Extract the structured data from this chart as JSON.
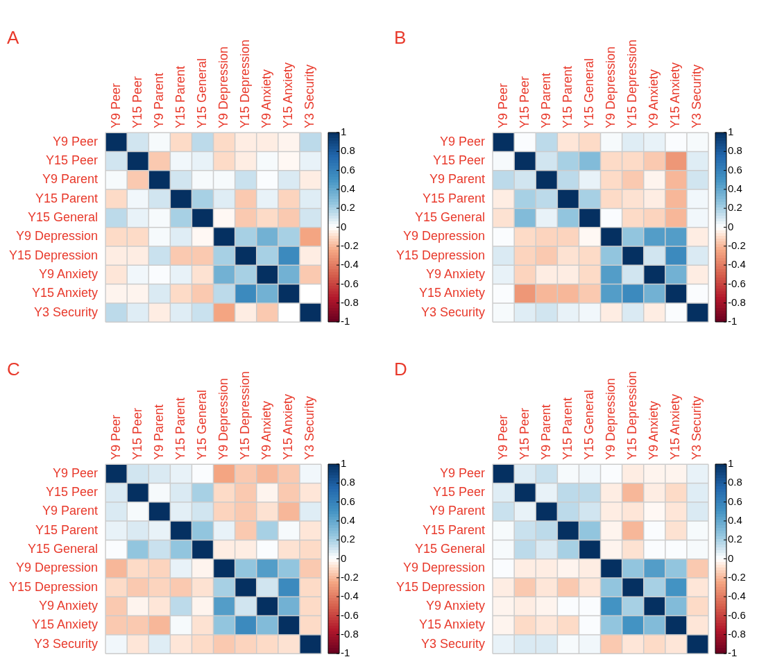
{
  "chart_data": [
    {
      "type": "heatmap",
      "grid": true,
      "title": "A",
      "categories": [
        "Y9 Peer",
        "Y15 Peer",
        "Y9 Parent",
        "Y15 Parent",
        "Y15 General",
        "Y9 Depression",
        "Y15 Depression",
        "Y9 Anxiety",
        "Y15 Anxiety",
        "Y3 Security"
      ],
      "y_categories": [
        "Y9 Peer",
        "Y15 Peer",
        "Y9 Parent",
        "Y15 Parent",
        "Y15 General",
        "Y9 Depression",
        "Y15 Depression",
        "Y9 Anxiety",
        "Y15 Anxiety",
        "Y3 Security"
      ],
      "clim": [
        -1,
        1
      ],
      "cticks": [
        1,
        0.8,
        0.6,
        0.4,
        0.2,
        0,
        -0.2,
        -0.4,
        -0.6,
        -0.8,
        -1
      ],
      "cells": [
        [
          1,
          0.1,
          0.02,
          -0.1,
          0.15,
          -0.1,
          -0.05,
          -0.05,
          -0.03,
          0.15
        ],
        [
          0.1,
          1,
          -0.15,
          0.03,
          0.05,
          -0.1,
          -0.05,
          0.02,
          -0.02,
          0.05
        ],
        [
          0.02,
          -0.15,
          1,
          0.1,
          0.02,
          0.02,
          0.12,
          0.01,
          0.08,
          -0.05
        ],
        [
          -0.1,
          0.03,
          0.1,
          1,
          0.2,
          0.07,
          -0.15,
          0.05,
          -0.12,
          0.07
        ],
        [
          0.15,
          0.05,
          0.02,
          0.2,
          1,
          -0.02,
          -0.15,
          -0.1,
          -0.15,
          0.1
        ],
        [
          -0.1,
          -0.1,
          0.02,
          0.07,
          -0.02,
          1,
          0.2,
          0.35,
          0.2,
          -0.25
        ],
        [
          -0.05,
          -0.05,
          0.12,
          -0.15,
          -0.15,
          0.2,
          1,
          0.2,
          0.55,
          -0.05
        ],
        [
          -0.07,
          0.03,
          0.01,
          0.05,
          -0.08,
          0.35,
          0.2,
          1,
          0.35,
          -0.15
        ],
        [
          -0.03,
          -0.03,
          0.08,
          -0.1,
          -0.15,
          0.15,
          0.55,
          0.35,
          1,
          0
        ],
        [
          0.15,
          0.07,
          -0.05,
          0.07,
          0.12,
          -0.25,
          -0.05,
          -0.15,
          0,
          1
        ]
      ]
    },
    {
      "type": "heatmap",
      "grid": true,
      "title": "B",
      "categories": [
        "Y9 Peer",
        "Y15 Peer",
        "Y9 Parent",
        "Y15 Parent",
        "Y15 General",
        "Y9 Depression",
        "Y15 Depression",
        "Y9 Anxiety",
        "Y15 Anxiety",
        "Y3 Security"
      ],
      "y_categories": [
        "Y9 Peer",
        "Y15 Peer",
        "Y9 Parent",
        "Y15 Parent",
        "Y15 General",
        "Y9 Depression",
        "Y15 Depression",
        "Y9 Anxiety",
        "Y15 Anxiety",
        "Y3 Security"
      ],
      "clim": [
        -1,
        1
      ],
      "cticks": [
        1,
        0.8,
        0.6,
        0.4,
        0.2,
        0,
        -0.2,
        -0.4,
        -0.6,
        -0.8,
        -1
      ],
      "cells": [
        [
          1,
          0.01,
          0.15,
          -0.07,
          -0.1,
          0.02,
          0.07,
          0.05,
          0.01,
          0.02
        ],
        [
          0.02,
          1,
          0.1,
          0.2,
          0.3,
          -0.1,
          -0.1,
          -0.15,
          -0.3,
          0.07
        ],
        [
          0.15,
          0.1,
          1,
          0.15,
          0.05,
          -0.1,
          -0.15,
          -0.03,
          -0.2,
          0.1
        ],
        [
          -0.05,
          0.2,
          0.15,
          1,
          0.2,
          -0.1,
          -0.08,
          -0.05,
          -0.2,
          0.03
        ],
        [
          -0.08,
          0.3,
          0.05,
          0.25,
          1,
          0.01,
          -0.1,
          -0.12,
          -0.2,
          0.03
        ],
        [
          0.01,
          -0.1,
          -0.12,
          -0.12,
          -0.02,
          1,
          0.25,
          0.45,
          0.45,
          -0.05
        ],
        [
          0.08,
          -0.12,
          -0.15,
          -0.08,
          -0.1,
          0.25,
          1,
          0.1,
          0.55,
          0.08
        ],
        [
          0.05,
          -0.12,
          -0.05,
          -0.05,
          -0.1,
          0.45,
          0.1,
          1,
          0.35,
          -0.05
        ],
        [
          0.01,
          -0.3,
          -0.2,
          -0.2,
          -0.15,
          0.45,
          0.55,
          0.35,
          1,
          0.01
        ],
        [
          0.02,
          0.07,
          0.1,
          0.05,
          0.03,
          -0.05,
          0.08,
          -0.05,
          0.01,
          1
        ]
      ]
    },
    {
      "type": "heatmap",
      "grid": true,
      "title": "C",
      "categories": [
        "Y9 Peer",
        "Y15 Peer",
        "Y9 Parent",
        "Y15 Parent",
        "Y15 General",
        "Y9 Depression",
        "Y15 Depression",
        "Y9 Anxiety",
        "Y15 Anxiety",
        "Y3 Security"
      ],
      "y_categories": [
        "Y9 Peer",
        "Y15 Peer",
        "Y9 Parent",
        "Y15 Parent",
        "Y15 General",
        "Y9 Depression",
        "Y15 Depression",
        "Y9 Anxiety",
        "Y15 Anxiety",
        "Y3 Security"
      ],
      "clim": [
        -1,
        1
      ],
      "cticks": [
        1,
        0.8,
        0.6,
        0.4,
        0.2,
        0,
        -0.2,
        -0.4,
        -0.6,
        -0.8,
        -1
      ],
      "cells": [
        [
          1,
          0.1,
          0.08,
          0.05,
          0.01,
          -0.25,
          -0.15,
          -0.2,
          -0.15,
          0.03
        ],
        [
          0.08,
          1,
          0.02,
          0.08,
          0.2,
          -0.1,
          -0.15,
          -0.03,
          -0.15,
          -0.07
        ],
        [
          0.08,
          0.02,
          1,
          0.06,
          0.1,
          -0.12,
          -0.15,
          -0.08,
          -0.2,
          0.07
        ],
        [
          0.05,
          0.08,
          0.05,
          1,
          0.25,
          0.05,
          -0.15,
          0.2,
          0.02,
          -0.07
        ],
        [
          0.01,
          0.25,
          0.12,
          0.25,
          1,
          -0.05,
          -0.05,
          0.01,
          -0.08,
          -0.1
        ],
        [
          -0.2,
          -0.1,
          -0.12,
          0.05,
          -0.03,
          1,
          0.25,
          0.45,
          0.25,
          -0.15
        ],
        [
          -0.1,
          -0.15,
          -0.12,
          -0.15,
          -0.08,
          0.2,
          1,
          0.1,
          0.55,
          -0.1
        ],
        [
          -0.15,
          -0.03,
          -0.07,
          0.15,
          -0.03,
          0.45,
          0.1,
          1,
          0.35,
          -0.1
        ],
        [
          -0.15,
          -0.15,
          -0.2,
          0.02,
          -0.08,
          0.25,
          0.55,
          0.3,
          1,
          -0.1
        ],
        [
          0.03,
          -0.07,
          0.07,
          -0.07,
          -0.1,
          -0.15,
          -0.12,
          -0.1,
          -0.08,
          1
        ]
      ]
    },
    {
      "type": "heatmap",
      "grid": true,
      "title": "D",
      "categories": [
        "Y9 Peer",
        "Y15 Peer",
        "Y9 Parent",
        "Y15 Parent",
        "Y15 General",
        "Y9 Depression",
        "Y15 Depression",
        "Y9 Anxiety",
        "Y15 Anxiety",
        "Y3 Security"
      ],
      "y_categories": [
        "Y9 Peer",
        "Y15 Peer",
        "Y9 Parent",
        "Y15 Parent",
        "Y15 General",
        "Y9 Depression",
        "Y15 Depression",
        "Y9 Anxiety",
        "Y15 Anxiety",
        "Y3 Security"
      ],
      "clim": [
        -1,
        1
      ],
      "cticks": [
        1,
        0.8,
        0.6,
        0.4,
        0.2,
        0,
        -0.2,
        -0.4,
        -0.6,
        -0.8,
        -1
      ],
      "cells": [
        [
          1,
          0.07,
          0.12,
          0.02,
          0.03,
          0.01,
          -0.05,
          -0.03,
          -0.03,
          0.05
        ],
        [
          0.07,
          1,
          0.05,
          0.15,
          0.15,
          -0.05,
          -0.2,
          -0.05,
          -0.1,
          0.07
        ],
        [
          0.12,
          0.05,
          1,
          0.15,
          0.1,
          -0.05,
          -0.07,
          -0.02,
          -0.07,
          0.08
        ],
        [
          0.02,
          0.12,
          0.15,
          1,
          0.25,
          -0.03,
          -0.2,
          0.01,
          -0.08,
          0.02
        ],
        [
          0.02,
          0.15,
          0.08,
          0.2,
          1,
          -0.03,
          -0.08,
          0.01,
          0.01,
          0.02
        ],
        [
          0.01,
          -0.05,
          -0.05,
          -0.03,
          -0.05,
          1,
          0.25,
          0.45,
          0.25,
          -0.15
        ],
        [
          -0.05,
          -0.15,
          -0.07,
          -0.15,
          -0.07,
          0.25,
          1,
          0.2,
          0.5,
          -0.07
        ],
        [
          -0.03,
          -0.05,
          -0.03,
          0.01,
          0.01,
          0.5,
          0.2,
          1,
          0.3,
          -0.1
        ],
        [
          -0.03,
          -0.1,
          -0.07,
          -0.1,
          0.01,
          0.25,
          0.5,
          0.3,
          1,
          -0.07
        ],
        [
          0.05,
          0.08,
          0.08,
          0.02,
          0.03,
          -0.15,
          -0.07,
          -0.1,
          -0.07,
          1
        ]
      ]
    }
  ]
}
